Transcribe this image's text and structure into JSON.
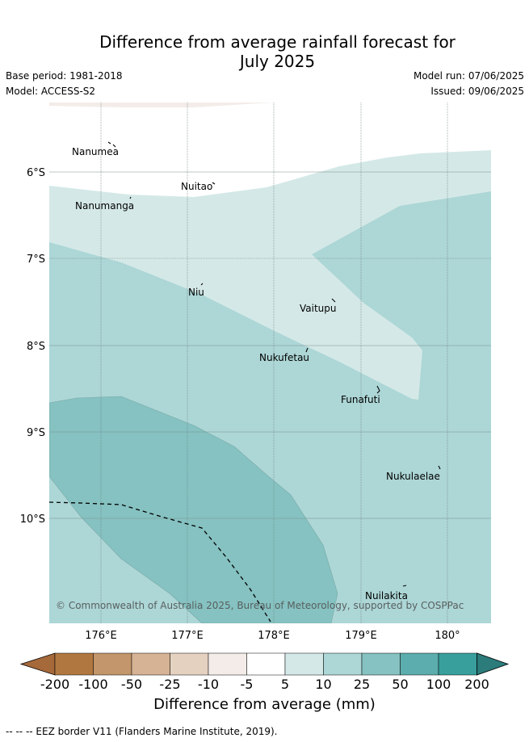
{
  "title_line1": "Difference from average rainfall forecast for",
  "title_line2": "July 2025",
  "base_period": "Base period: 1981-2018",
  "model": "Model: ACCESS-S2",
  "model_run": "Model run: 07/06/2025",
  "issued": "Issued: 09/06/2025",
  "copyright": "© Commonwealth of Australia 2025, Bureau of Meteorology, supported by COSPPac",
  "lat_labels": [
    "6°S",
    "7°S",
    "8°S",
    "9°S",
    "10°S"
  ],
  "lon_labels": [
    "176°E",
    "177°E",
    "178°E",
    "179°E",
    "180°"
  ],
  "islands": [
    {
      "name": "Nanumea"
    },
    {
      "name": "Nuitao"
    },
    {
      "name": "Nanumanga"
    },
    {
      "name": "Niu"
    },
    {
      "name": "Vaitupu"
    },
    {
      "name": "Nukufetau"
    },
    {
      "name": "Funafuti"
    },
    {
      "name": "Nukulaelae"
    },
    {
      "name": "Nuilakita"
    }
  ],
  "colorbar": {
    "title": "Difference from average (mm)",
    "tick_labels": [
      "-200",
      "-100",
      "-50",
      "-25",
      "-10",
      "-5",
      "5",
      "10",
      "25",
      "50",
      "100",
      "200"
    ],
    "colors": [
      "#a6693a",
      "#b07840",
      "#c3966b",
      "#d5b394",
      "#e5d1c0",
      "#f3ece9",
      "#ffffff",
      "#d4e9e7",
      "#add6d6",
      "#85c2c1",
      "#5cadad",
      "#389f9d",
      "#2b7c7b"
    ]
  },
  "footer": "--  --  -- EEZ border V11 (Flanders Marine Institute, 2019)."
}
